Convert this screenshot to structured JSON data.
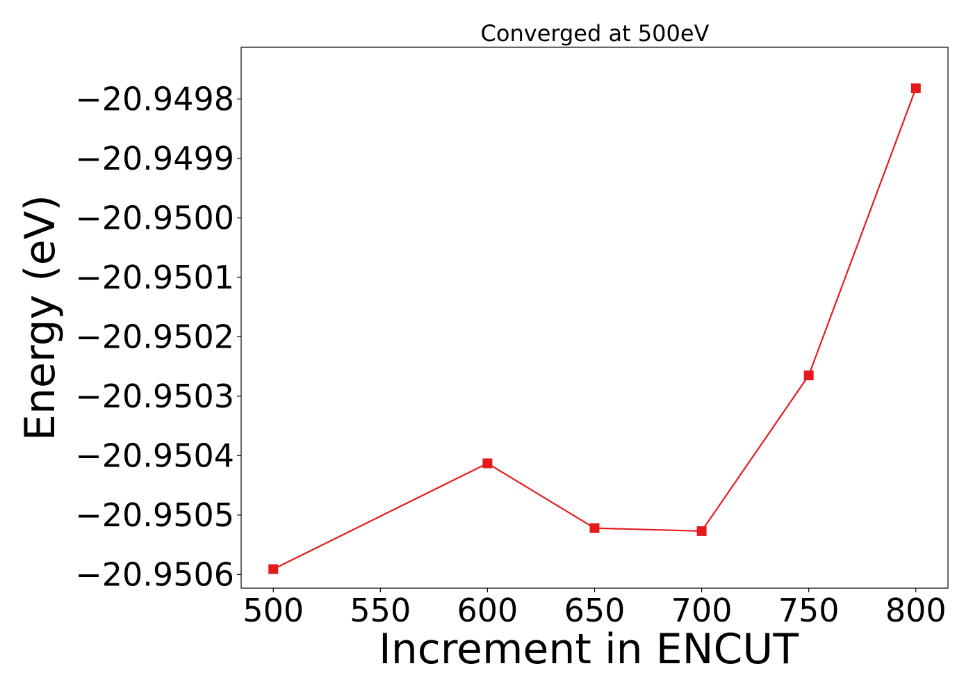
{
  "chart_data": {
    "type": "line",
    "title": "Converged at 500eV",
    "xlabel": "Increment in ENCUT",
    "ylabel": "Energy (eV)",
    "x": [
      500,
      600,
      650,
      700,
      750,
      800
    ],
    "series": [
      {
        "values": [
          -20.950591,
          -20.950413,
          -20.950522,
          -20.950527,
          -20.950265,
          -20.949782
        ],
        "color": "#e41a1c",
        "marker": "square"
      }
    ],
    "xlim": [
      485,
      815
    ],
    "ylim": [
      -20.950623,
      -20.949713
    ],
    "x_ticks": [
      500,
      550,
      600,
      650,
      700,
      750,
      800
    ],
    "x_tick_labels": [
      "500",
      "550",
      "600",
      "650",
      "700",
      "750",
      "800"
    ],
    "y_ticks": [
      -20.9498,
      -20.9499,
      -20.95,
      -20.9501,
      -20.9502,
      -20.9503,
      -20.9504,
      -20.9505,
      -20.9506
    ],
    "y_tick_labels": [
      "−20.9498",
      "−20.9499",
      "−20.9500",
      "−20.9501",
      "−20.9502",
      "−20.9503",
      "−20.9504",
      "−20.9505",
      "−20.9506"
    ],
    "grid": false,
    "legend": false
  }
}
